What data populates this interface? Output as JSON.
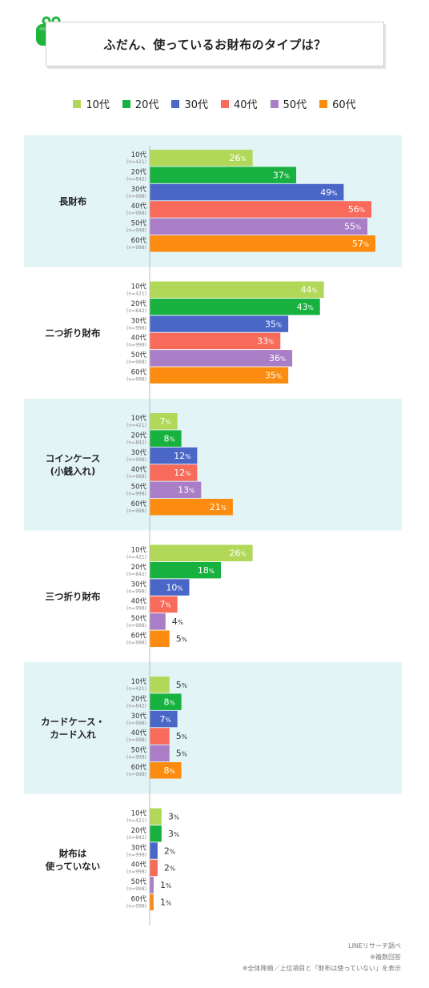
{
  "title": "ふだん、使っているお財布のタイプは？",
  "legend": [
    "10代",
    "20代",
    "30代",
    "40代",
    "50代",
    "60代"
  ],
  "colors": [
    "#b2d85a",
    "#17b13f",
    "#4a67c8",
    "#f86a5a",
    "#a97ec6",
    "#fb8c0f"
  ],
  "chart_data": {
    "type": "bar",
    "orientation": "horizontal",
    "unit": "%",
    "series_names": [
      "10代",
      "20代",
      "30代",
      "40代",
      "50代",
      "60代"
    ],
    "sample_sizes": [
      "(n=421)",
      "(n=842)",
      "(n=998)",
      "(n=998)",
      "(n=998)",
      "(n=998)"
    ],
    "groups": [
      {
        "name": "長財布",
        "values": [
          26,
          37,
          49,
          56,
          55,
          57
        ]
      },
      {
        "name": "二つ折り財布",
        "values": [
          44,
          43,
          35,
          33,
          36,
          35
        ]
      },
      {
        "name": "コインケース\n(小銭入れ)",
        "values": [
          7,
          8,
          12,
          12,
          13,
          21
        ]
      },
      {
        "name": "三つ折り財布",
        "values": [
          26,
          18,
          10,
          7,
          4,
          5
        ]
      },
      {
        "name": "カードケース・\nカード入れ",
        "values": [
          5,
          8,
          7,
          5,
          5,
          8
        ]
      },
      {
        "name": "財布は\n使っていない",
        "values": [
          3,
          3,
          2,
          2,
          1,
          1
        ]
      }
    ]
  },
  "footer": {
    "source": "LINEリサーチ調べ",
    "note1": "※複数回答",
    "note2": "※全体降順／上位項目と「財布は使っていない」を表示"
  }
}
